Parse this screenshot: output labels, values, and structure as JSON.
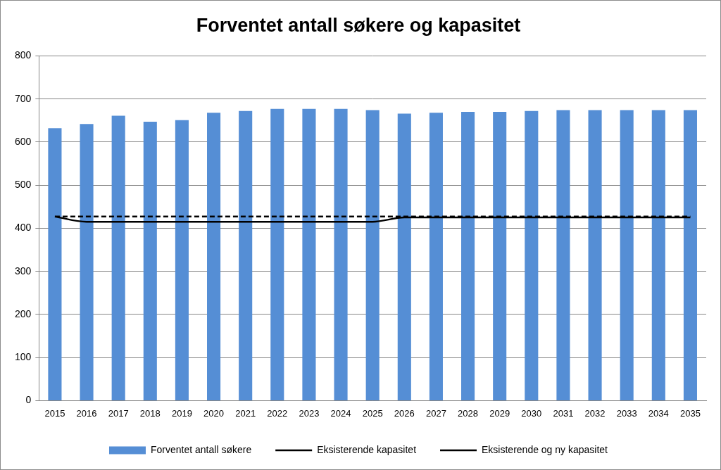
{
  "chart_data": {
    "type": "bar",
    "title": "Forventet antall søkere og kapasitet",
    "categories": [
      "2015",
      "2016",
      "2017",
      "2018",
      "2019",
      "2020",
      "2021",
      "2022",
      "2023",
      "2024",
      "2025",
      "2026",
      "2027",
      "2028",
      "2029",
      "2030",
      "2031",
      "2032",
      "2033",
      "2034",
      "2035"
    ],
    "series": [
      {
        "name": "Forventet antall søkere",
        "type": "bar",
        "color": "#558ed5",
        "values": [
          632,
          642,
          661,
          647,
          651,
          668,
          672,
          677,
          677,
          677,
          674,
          666,
          668,
          670,
          670,
          672,
          674,
          674,
          674,
          674,
          674
        ]
      },
      {
        "name": "Eksisterende kapasitet",
        "type": "line",
        "color": "#000000",
        "line_style": "dashed",
        "marker": "none",
        "values": [
          427,
          427,
          427,
          427,
          427,
          427,
          427,
          427,
          427,
          427,
          427,
          427,
          427,
          427,
          427,
          427,
          427,
          427,
          427,
          427,
          427
        ]
      },
      {
        "name": "Eksisterende og ny kapasitet",
        "type": "line",
        "color": "#000000",
        "line_style": "solid",
        "marker": "none",
        "values": [
          427,
          415,
          415,
          415,
          415,
          415,
          415,
          415,
          415,
          415,
          415,
          425,
          425,
          425,
          425,
          425,
          425,
          425,
          425,
          425,
          425
        ]
      }
    ],
    "ylim": [
      0,
      800
    ],
    "yticks": [
      0,
      100,
      200,
      300,
      400,
      500,
      600,
      700,
      800
    ],
    "grid": true,
    "legend": "bottom"
  }
}
